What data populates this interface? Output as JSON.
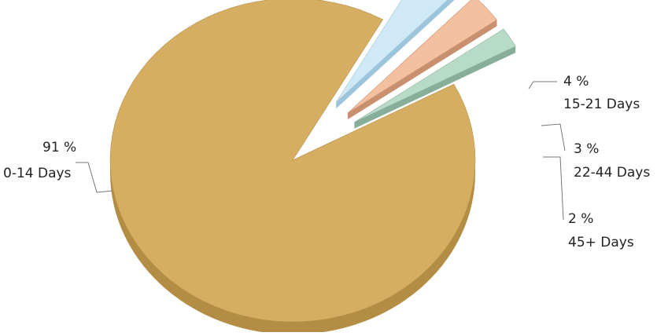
{
  "chart_data": {
    "type": "pie",
    "title": "",
    "style": "3d-exploded",
    "slices": [
      {
        "label": "0-14 Days",
        "value": 91,
        "value_label": "91 %",
        "color": "#d6ae62",
        "side_color": "#b48d45"
      },
      {
        "label": "15-21 Days",
        "value": 4,
        "value_label": "4 %",
        "color": "#cfe9f7",
        "side_color": "#9cc5db"
      },
      {
        "label": "22-44 Days",
        "value": 3,
        "value_label": "3 %",
        "color": "#f3c0a0",
        "side_color": "#c8906f"
      },
      {
        "label": "45+ Days",
        "value": 2,
        "value_label": "2 %",
        "color": "#b8dbc8",
        "side_color": "#86ae98"
      }
    ]
  }
}
